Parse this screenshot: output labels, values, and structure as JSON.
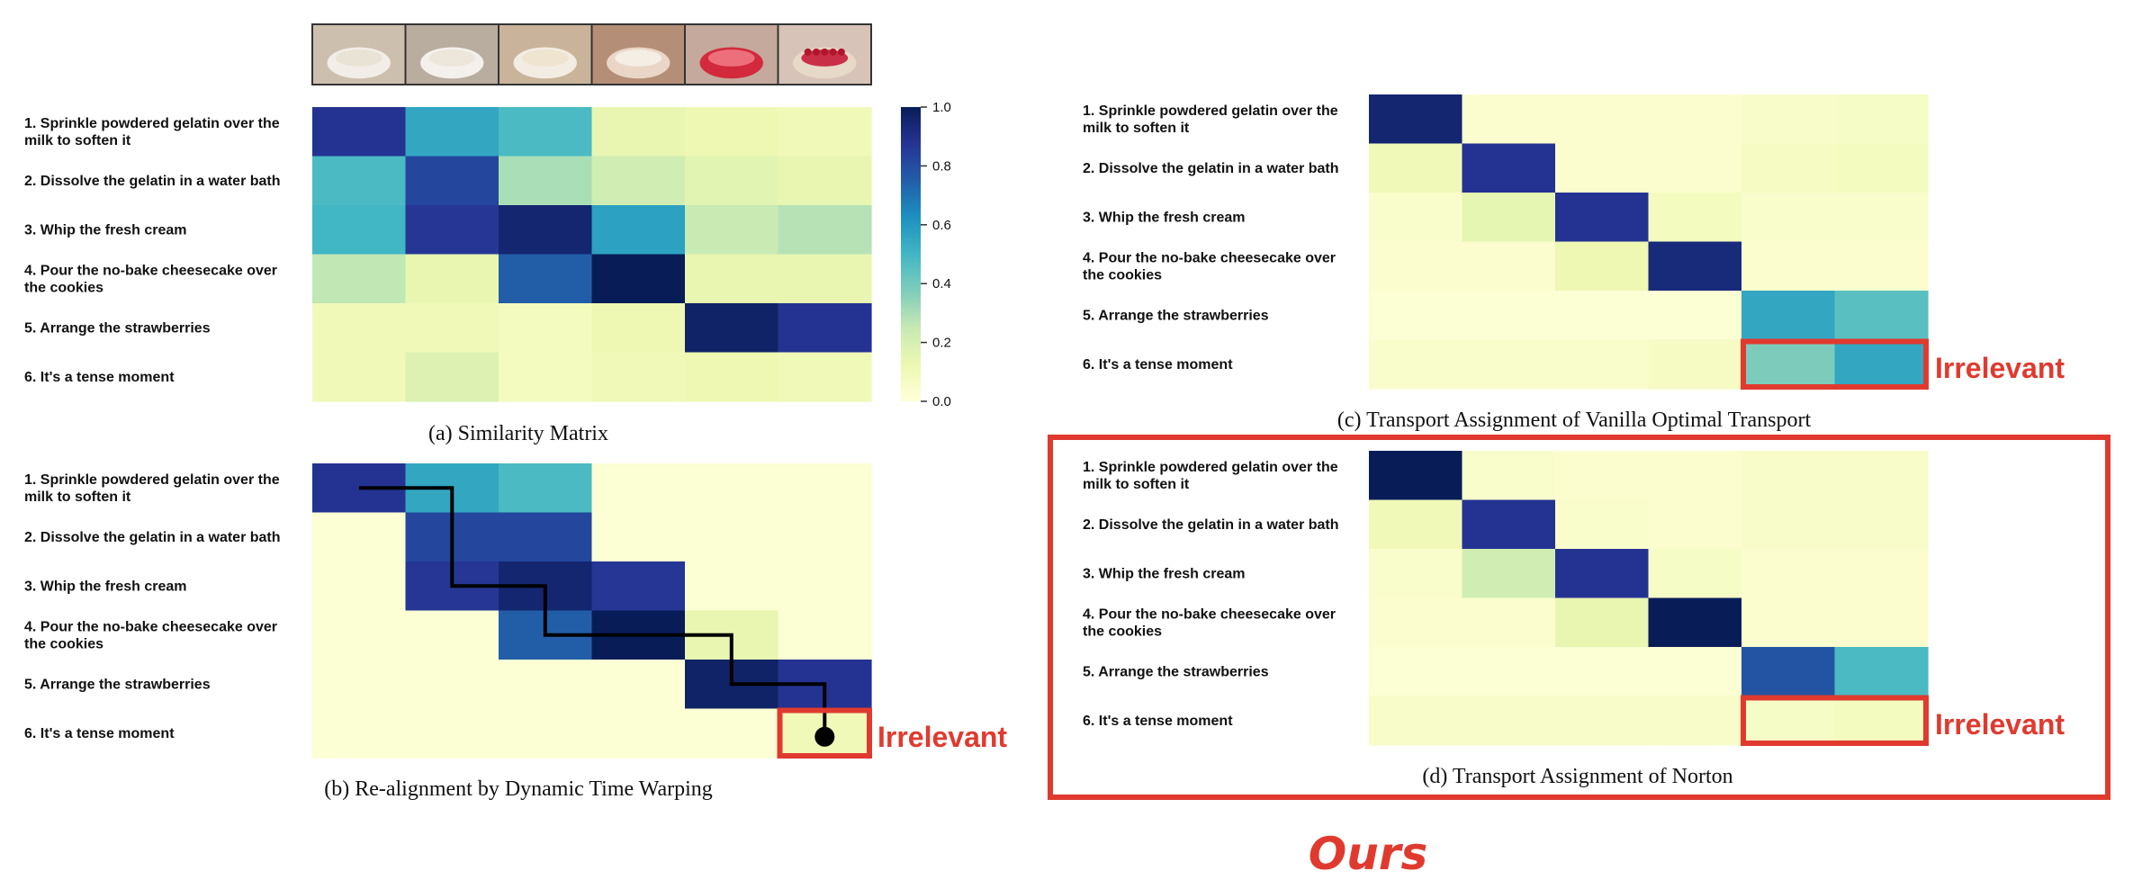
{
  "colors": {
    "highlight_red": "#e03a2f",
    "colormap_low": "#ffffd9",
    "colormap_high": "#081d58"
  },
  "icons": [
    "video-frame-1-icon",
    "video-frame-2-icon",
    "video-frame-3-icon",
    "video-frame-4-icon",
    "video-frame-5-icon",
    "video-frame-6-icon"
  ],
  "row_labels": [
    [
      "1. Sprinkle powdered gelatin over the",
      "milk to soften it"
    ],
    [
      "2. Dissolve the gelatin in a water bath"
    ],
    [
      "3. Whip the fresh cream"
    ],
    [
      "4. Pour the no-bake cheesecake over",
      "the cookies"
    ],
    [
      "5. Arrange the strawberries"
    ],
    [
      "6. It's a tense moment"
    ]
  ],
  "annotations": {
    "irrelevant": "Irrelevant",
    "ours": "Ours"
  },
  "chart_data": [
    {
      "type": "heatmap",
      "id": "a",
      "title": "(a) Similarity Matrix",
      "rows": 6,
      "cols": 6,
      "colorbar": {
        "ticks": [
          0.0,
          0.2,
          0.4,
          0.6,
          0.8,
          1.0
        ],
        "range": [
          0.0,
          1.0
        ]
      },
      "values": [
        [
          0.88,
          0.55,
          0.48,
          0.14,
          0.12,
          0.1
        ],
        [
          0.48,
          0.82,
          0.3,
          0.22,
          0.16,
          0.14
        ],
        [
          0.5,
          0.87,
          0.95,
          0.57,
          0.24,
          0.28
        ],
        [
          0.26,
          0.14,
          0.75,
          1.0,
          0.14,
          0.14
        ],
        [
          0.1,
          0.1,
          0.08,
          0.12,
          0.97,
          0.88
        ],
        [
          0.1,
          0.18,
          0.08,
          0.1,
          0.12,
          0.1
        ]
      ]
    },
    {
      "type": "heatmap",
      "id": "b",
      "title": "(b) Re-alignment by Dynamic Time Warping",
      "rows": 6,
      "cols": 6,
      "values": [
        [
          0.88,
          0.55,
          0.48,
          0.02,
          0.02,
          0.02
        ],
        [
          0.02,
          0.82,
          0.82,
          0.02,
          0.02,
          0.02
        ],
        [
          0.02,
          0.87,
          0.95,
          0.87,
          0.02,
          0.02
        ],
        [
          0.02,
          0.02,
          0.75,
          1.0,
          0.14,
          0.02
        ],
        [
          0.02,
          0.02,
          0.02,
          0.02,
          0.97,
          0.88
        ],
        [
          0.02,
          0.02,
          0.02,
          0.02,
          0.02,
          0.1
        ]
      ],
      "dtw_path": [
        [
          0,
          0
        ],
        [
          0,
          1
        ],
        [
          2,
          1
        ],
        [
          2,
          2
        ],
        [
          3,
          2
        ],
        [
          3,
          4
        ],
        [
          4,
          4
        ],
        [
          4,
          5
        ],
        [
          5,
          5
        ]
      ],
      "highlighted_cells": [
        [
          5,
          5
        ]
      ]
    },
    {
      "type": "heatmap",
      "id": "c",
      "title": "(c) Transport Assignment of Vanilla Optimal Transport",
      "rows": 6,
      "cols": 6,
      "values": [
        [
          0.95,
          0.03,
          0.03,
          0.03,
          0.05,
          0.06
        ],
        [
          0.1,
          0.88,
          0.03,
          0.03,
          0.07,
          0.08
        ],
        [
          0.04,
          0.15,
          0.88,
          0.08,
          0.04,
          0.04
        ],
        [
          0.03,
          0.03,
          0.12,
          0.93,
          0.03,
          0.03
        ],
        [
          0.02,
          0.02,
          0.02,
          0.02,
          0.55,
          0.45
        ],
        [
          0.04,
          0.04,
          0.04,
          0.07,
          0.38,
          0.55
        ]
      ],
      "highlighted_cells": [
        [
          5,
          4
        ],
        [
          5,
          5
        ]
      ]
    },
    {
      "type": "heatmap",
      "id": "d",
      "title": "(d) Transport Assignment of Norton",
      "rows": 6,
      "cols": 6,
      "values": [
        [
          1.0,
          0.04,
          0.03,
          0.03,
          0.05,
          0.05
        ],
        [
          0.1,
          0.88,
          0.04,
          0.03,
          0.05,
          0.05
        ],
        [
          0.04,
          0.22,
          0.88,
          0.06,
          0.03,
          0.03
        ],
        [
          0.03,
          0.03,
          0.14,
          1.0,
          0.03,
          0.03
        ],
        [
          0.02,
          0.02,
          0.02,
          0.02,
          0.78,
          0.48
        ],
        [
          0.05,
          0.05,
          0.05,
          0.05,
          0.06,
          0.08
        ]
      ],
      "highlighted_cells": [
        [
          5,
          4
        ],
        [
          5,
          5
        ]
      ]
    }
  ]
}
